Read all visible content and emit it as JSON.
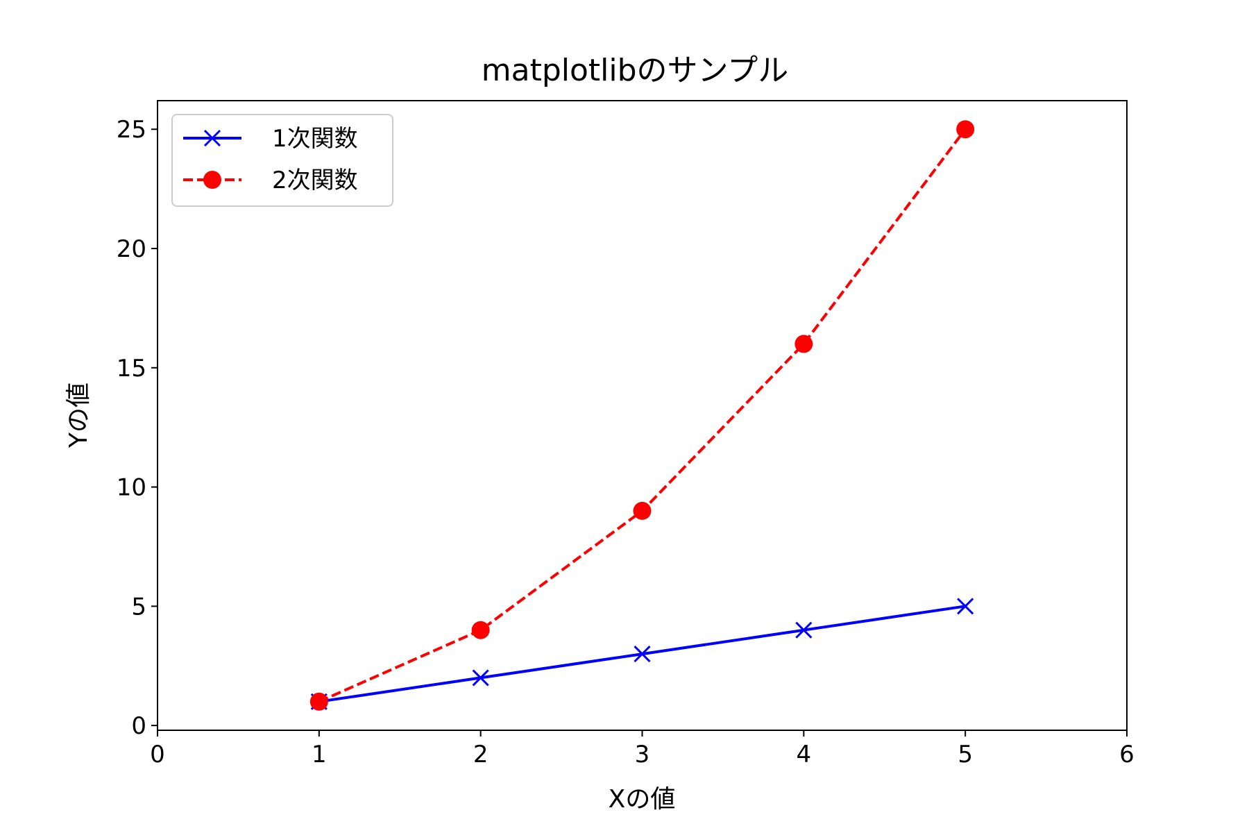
{
  "chart_data": {
    "type": "line",
    "title": "matplotlibのサンプル",
    "xlabel": "Xの値",
    "ylabel": "Yの値",
    "xlim": [
      0,
      6
    ],
    "ylim": [
      -0.2,
      26.2
    ],
    "xticks": [
      0,
      1,
      2,
      3,
      4,
      5,
      6
    ],
    "yticks": [
      0,
      5,
      10,
      15,
      20,
      25
    ],
    "grid": false,
    "legend_position": "top-left",
    "series": [
      {
        "name": "1次関数",
        "x": [
          1,
          2,
          3,
          4,
          5
        ],
        "y": [
          1,
          2,
          3,
          4,
          5
        ],
        "color": "#0000ff",
        "linestyle": "solid",
        "marker": "x"
      },
      {
        "name": "2次関数",
        "x": [
          1,
          2,
          3,
          4,
          5
        ],
        "y": [
          1,
          4,
          9,
          16,
          25
        ],
        "color": "#ff0000",
        "linestyle": "dashed",
        "marker": "circle"
      }
    ]
  }
}
